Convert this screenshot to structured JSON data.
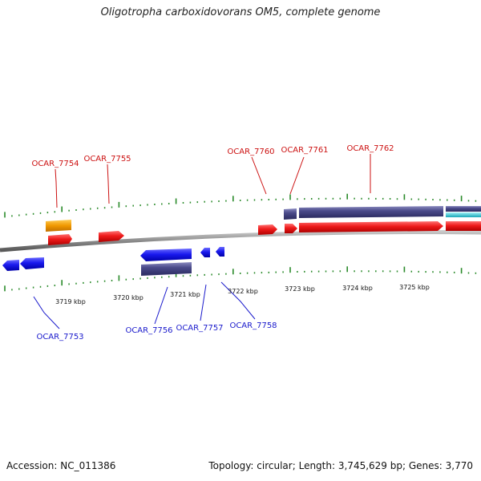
{
  "title": "Oligotropha carboxidovorans OM5, complete genome",
  "accession_label": "Accession:",
  "accession": "NC_011386",
  "topology_label": "Topology:",
  "topology": "circular",
  "length_label": "Length:",
  "length": "3,745,629 bp",
  "genes_label": "Genes:",
  "genes": "3,770",
  "scale_labels": [
    "3719 kbp",
    "3720 kbp",
    "3721 kbp",
    "3722 kbp",
    "3723 kbp",
    "3724 kbp",
    "3725 kbp"
  ],
  "forward_genes": [
    "OCAR_7754",
    "OCAR_7755",
    "OCAR_7760",
    "OCAR_7761",
    "OCAR_7762"
  ],
  "reverse_genes": [
    "OCAR_7753",
    "OCAR_7756",
    "OCAR_7757",
    "OCAR_7758"
  ],
  "colors": {
    "forward_gene": "#e8141a",
    "forward_label": "#cc1111",
    "reverse_gene": "#1a1ae6",
    "reverse_label": "#1a1acc",
    "rna": "#f0a000",
    "domain": "#4a4a8a",
    "teal": "#20c0cc",
    "tick": "#2a8a2a",
    "backbone": "#8a8a8a"
  }
}
